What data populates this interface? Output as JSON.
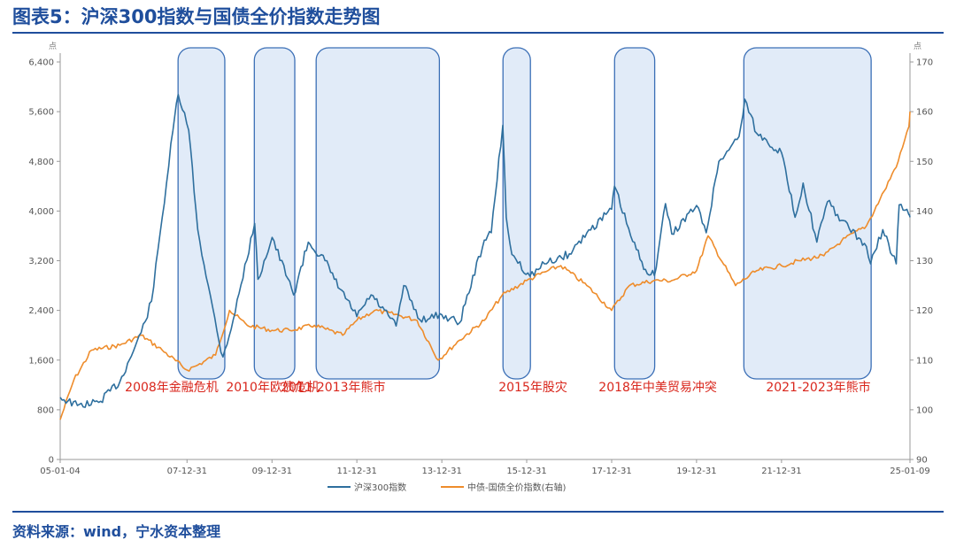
{
  "title": "图表5：沪深300指数与国债全价指数走势图",
  "source": "资料来源：wind，宁水资本整理",
  "colors": {
    "csi300": "#2e6f9e",
    "bond": "#ee8c2b",
    "annotation": "#d9261c",
    "band_fill": "#c8daf3",
    "band_stroke": "#3b6fb6",
    "brand": "#1f4e9c"
  },
  "chart_data": {
    "type": "line",
    "x_ticks": [
      "05-01-04",
      "07-12-31",
      "09-12-31",
      "11-12-31",
      "13-12-31",
      "15-12-31",
      "17-12-31",
      "19-12-31",
      "21-12-31",
      "25-01-09"
    ],
    "xlim": [
      "2005-01-04",
      "2025-01-09"
    ],
    "left_axis": {
      "unit": "点",
      "ylim": [
        0,
        6400
      ],
      "ticks": [
        "0",
        "800",
        "1,600",
        "2,400",
        "3,200",
        "4,000",
        "4,800",
        "5,600",
        "6,400"
      ]
    },
    "right_axis": {
      "unit": "点",
      "ylim": [
        90,
        170
      ],
      "ticks": [
        "90",
        "100",
        "110",
        "120",
        "130",
        "140",
        "150",
        "160",
        "170"
      ]
    },
    "series": [
      {
        "name": "沪深300指数",
        "axis": "left",
        "x": [
          "2005-01-04",
          "2005-06-01",
          "2005-12-01",
          "2006-06-01",
          "2006-12-01",
          "2007-03-01",
          "2007-06-01",
          "2007-09-01",
          "2007-10-16",
          "2008-01-15",
          "2008-04-01",
          "2008-07-01",
          "2008-10-01",
          "2008-11-04",
          "2009-02-01",
          "2009-08-04",
          "2009-09-01",
          "2010-01-01",
          "2010-07-05",
          "2010-11-08",
          "2011-04-01",
          "2011-06-20",
          "2011-12-31",
          "2012-05-01",
          "2012-12-03",
          "2013-02-06",
          "2013-06-25",
          "2013-12-31",
          "2014-06-01",
          "2014-12-31",
          "2015-03-01",
          "2015-06-08",
          "2015-07-08",
          "2015-08-26",
          "2016-01-28",
          "2016-06-01",
          "2016-12-31",
          "2017-06-01",
          "2017-12-31",
          "2018-01-24",
          "2018-06-30",
          "2018-10-18",
          "2019-01-03",
          "2019-04-08",
          "2019-06-01",
          "2019-12-31",
          "2020-03-23",
          "2020-07-10",
          "2020-12-31",
          "2021-02-18",
          "2021-06-01",
          "2021-12-31",
          "2022-04-27",
          "2022-07-05",
          "2022-10-31",
          "2023-01-30",
          "2023-06-01",
          "2023-12-31",
          "2024-02-05",
          "2024-05-20",
          "2024-09-13",
          "2024-10-08",
          "2024-12-31",
          "2025-01-09"
        ],
        "values": [
          1000,
          870,
          920,
          1250,
          2040,
          2550,
          3900,
          5300,
          5877,
          5300,
          3700,
          2800,
          1900,
          1650,
          2250,
          3800,
          2900,
          3575,
          2650,
          3500,
          3200,
          2900,
          2300,
          2650,
          2150,
          2800,
          2250,
          2330,
          2200,
          3530,
          3650,
          5380,
          3900,
          3300,
          2950,
          3150,
          3310,
          3650,
          4030,
          4400,
          3510,
          3060,
          2960,
          4120,
          3630,
          4090,
          3650,
          4800,
          5200,
          5800,
          5250,
          4940,
          3900,
          4450,
          3500,
          4150,
          3850,
          3430,
          3150,
          3700,
          3150,
          4100,
          3940,
          3900
        ]
      },
      {
        "name": "中债-国债全价指数(右轴)",
        "axis": "right",
        "x": [
          "2005-01-04",
          "2005-05-01",
          "2005-10-01",
          "2006-06-01",
          "2006-12-01",
          "2007-06-01",
          "2007-12-31",
          "2008-04-01",
          "2008-09-01",
          "2008-12-31",
          "2009-06-01",
          "2009-12-31",
          "2010-06-01",
          "2010-12-31",
          "2011-08-31",
          "2011-12-31",
          "2012-06-01",
          "2012-12-31",
          "2013-06-01",
          "2013-11-30",
          "2014-06-01",
          "2014-12-31",
          "2015-06-01",
          "2015-12-31",
          "2016-07-01",
          "2016-10-20",
          "2017-06-01",
          "2017-12-31",
          "2018-06-01",
          "2018-12-31",
          "2019-06-01",
          "2019-12-31",
          "2020-04-08",
          "2020-11-30",
          "2021-06-01",
          "2021-12-31",
          "2022-06-01",
          "2022-12-31",
          "2023-06-01",
          "2023-12-31",
          "2024-06-01",
          "2024-09-30",
          "2024-12-31",
          "2025-01-09"
        ],
        "values": [
          98,
          106,
          112,
          113,
          115,
          112,
          108,
          109,
          111,
          120,
          117,
          116,
          116,
          117,
          115,
          118,
          120,
          119,
          118,
          110,
          114,
          118,
          123,
          126,
          128,
          129,
          125,
          120,
          125,
          126,
          126,
          128,
          135,
          125,
          128,
          129,
          130,
          131,
          134,
          137,
          144,
          150,
          157,
          160
        ]
      }
    ],
    "shaded_periods": [
      {
        "label": "2008年金融危机",
        "start": "2007-10-15",
        "end": "2008-11-20"
      },
      {
        "label": "2010年欧债危机",
        "start": "2009-08-01",
        "end": "2010-07-15"
      },
      {
        "label": "2011-2013年熊市",
        "start": "2011-01-15",
        "end": "2013-12-10"
      },
      {
        "label": "2015年股灾",
        "start": "2015-06-10",
        "end": "2016-02-01"
      },
      {
        "label": "2018年中美贸易冲突",
        "start": "2018-01-25",
        "end": "2019-01-05"
      },
      {
        "label": "2021-2023年熊市",
        "start": "2021-02-10",
        "end": "2024-02-10"
      }
    ],
    "grid": false,
    "legend_position": "bottom-center"
  }
}
